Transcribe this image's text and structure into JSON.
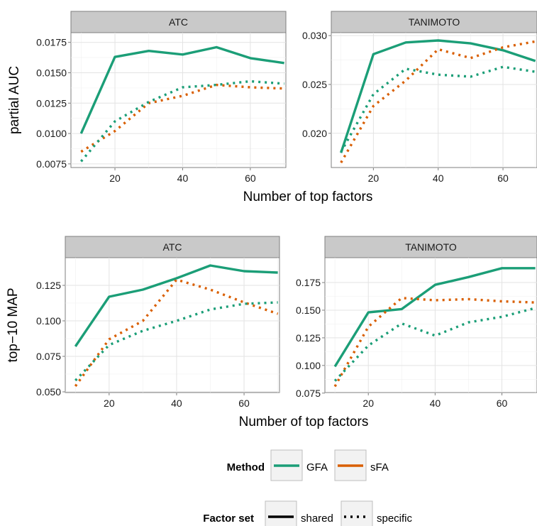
{
  "chart_data": {
    "type": "line",
    "x_label": "Number of top factors",
    "x_ticks": [
      20,
      40,
      60
    ],
    "method_colors": {
      "GFA": "#1b9e77",
      "sFA": "#d95f02"
    },
    "legend": {
      "method_title": "Method",
      "methods": [
        "GFA",
        "sFA"
      ],
      "factor_title": "Factor set",
      "factor_sets": [
        "shared",
        "specific"
      ]
    },
    "rows": [
      {
        "y_label": "partial AUC",
        "panels": [
          {
            "title": "ATC",
            "ylim": [
              0.0072,
              0.0183
            ],
            "y_ticks": [
              "0.0075",
              "0.0100",
              "0.0125",
              "0.0150",
              "0.0175"
            ],
            "series": [
              {
                "method": "GFA",
                "factor_set": "shared",
                "x": [
                  10,
                  20,
                  30,
                  40,
                  50,
                  60,
                  70
                ],
                "y": [
                  0.01,
                  0.0163,
                  0.0168,
                  0.0165,
                  0.0171,
                  0.0162,
                  0.0158
                ]
              },
              {
                "method": "sFA",
                "factor_set": "specific",
                "x": [
                  10,
                  20,
                  30,
                  40,
                  50,
                  60,
                  70
                ],
                "y": [
                  0.0085,
                  0.0102,
                  0.0125,
                  0.0131,
                  0.014,
                  0.0138,
                  0.0137
                ]
              },
              {
                "method": "GFA",
                "factor_set": "specific",
                "x": [
                  10,
                  20,
                  30,
                  40,
                  50,
                  60,
                  70
                ],
                "y": [
                  0.0077,
                  0.011,
                  0.0126,
                  0.0138,
                  0.014,
                  0.0143,
                  0.0141
                ]
              }
            ]
          },
          {
            "title": "TANIMOTO",
            "ylim": [
              0.0165,
              0.0303
            ],
            "y_ticks": [
              "0.020",
              "0.025",
              "0.030"
            ],
            "series": [
              {
                "method": "GFA",
                "factor_set": "shared",
                "x": [
                  10,
                  20,
                  30,
                  40,
                  50,
                  60,
                  70
                ],
                "y": [
                  0.018,
                  0.0281,
                  0.0293,
                  0.0295,
                  0.0292,
                  0.0285,
                  0.0274
                ]
              },
              {
                "method": "sFA",
                "factor_set": "specific",
                "x": [
                  10,
                  20,
                  30,
                  40,
                  50,
                  60,
                  70
                ],
                "y": [
                  0.017,
                  0.0228,
                  0.0254,
                  0.0286,
                  0.0277,
                  0.0288,
                  0.0294
                ]
              },
              {
                "method": "GFA",
                "factor_set": "specific",
                "x": [
                  10,
                  20,
                  30,
                  40,
                  50,
                  60,
                  70
                ],
                "y": [
                  0.0181,
                  0.024,
                  0.0266,
                  0.026,
                  0.0258,
                  0.0268,
                  0.0263
                ]
              }
            ]
          }
        ]
      },
      {
        "y_label": "top−10 MAP",
        "panels": [
          {
            "title": "ATC",
            "ylim": [
              0.0495,
              0.1445
            ],
            "y_ticks": [
              "0.050",
              "0.075",
              "0.100",
              "0.125"
            ],
            "series": [
              {
                "method": "GFA",
                "factor_set": "shared",
                "x": [
                  10,
                  20,
                  30,
                  40,
                  50,
                  60,
                  70
                ],
                "y": [
                  0.082,
                  0.117,
                  0.122,
                  0.13,
                  0.139,
                  0.135,
                  0.134
                ]
              },
              {
                "method": "sFA",
                "factor_set": "specific",
                "x": [
                  10,
                  20,
                  30,
                  40,
                  50,
                  60,
                  70
                ],
                "y": [
                  0.054,
                  0.087,
                  0.1,
                  0.129,
                  0.122,
                  0.113,
                  0.105
                ]
              },
              {
                "method": "GFA",
                "factor_set": "specific",
                "x": [
                  10,
                  20,
                  30,
                  40,
                  50,
                  60,
                  70
                ],
                "y": [
                  0.058,
                  0.083,
                  0.093,
                  0.1,
                  0.108,
                  0.112,
                  0.113
                ]
              }
            ]
          },
          {
            "title": "TANIMOTO",
            "ylim": [
              0.0755,
              0.1975
            ],
            "y_ticks": [
              "0.075",
              "0.100",
              "0.125",
              "0.150",
              "0.175"
            ],
            "series": [
              {
                "method": "GFA",
                "factor_set": "shared",
                "x": [
                  10,
                  20,
                  30,
                  40,
                  50,
                  60,
                  70
                ],
                "y": [
                  0.099,
                  0.148,
                  0.151,
                  0.173,
                  0.18,
                  0.188,
                  0.188
                ]
              },
              {
                "method": "sFA",
                "factor_set": "specific",
                "x": [
                  10,
                  20,
                  30,
                  40,
                  50,
                  60,
                  70
                ],
                "y": [
                  0.081,
                  0.135,
                  0.161,
                  0.159,
                  0.16,
                  0.158,
                  0.157
                ]
              },
              {
                "method": "GFA",
                "factor_set": "specific",
                "x": [
                  10,
                  20,
                  30,
                  40,
                  50,
                  60,
                  70
                ],
                "y": [
                  0.086,
                  0.118,
                  0.138,
                  0.127,
                  0.139,
                  0.144,
                  0.152
                ]
              }
            ]
          }
        ]
      }
    ]
  }
}
